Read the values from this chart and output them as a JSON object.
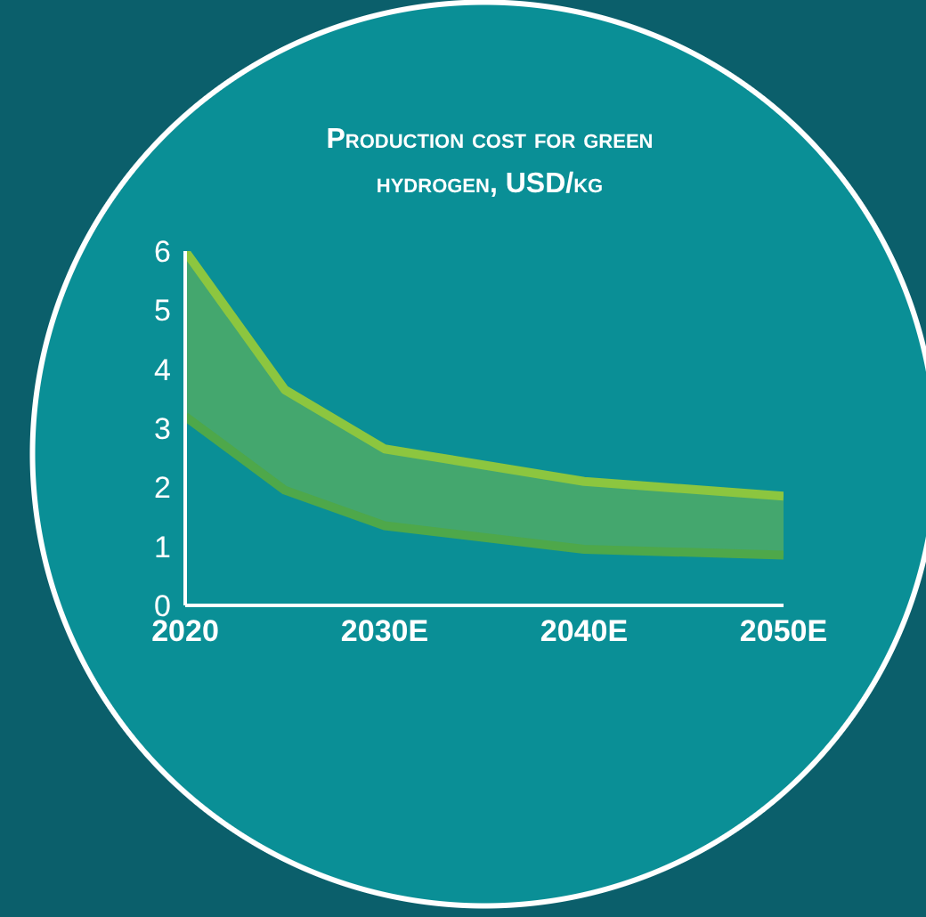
{
  "chart_data": {
    "type": "line",
    "title": "Production cost for green hydrogen, USD/kg",
    "x": [
      2020,
      2025,
      2030,
      2040,
      2050
    ],
    "series": [
      {
        "color": "#8cc63f",
        "values": [
          6.0,
          3.65,
          2.65,
          2.1,
          1.85
        ],
        "lower": [
          3.2,
          1.95,
          1.35,
          0.95,
          0.85
        ],
        "upper": [
          6.0,
          3.65,
          2.65,
          2.1,
          1.85
        ]
      },
      {
        "color": "#4ea84a",
        "values": [
          3.2,
          1.95,
          1.35,
          0.95,
          0.85
        ]
      }
    ],
    "xlim": [
      2020,
      2050
    ],
    "xticks": [
      2020,
      {
        "value": 2030,
        "label": "2030E"
      },
      {
        "value": 2040,
        "label": "2040E"
      },
      {
        "value": 2050,
        "label": "2050E"
      }
    ],
    "ylim": [
      0,
      6
    ],
    "yticks": [
      0,
      1,
      2,
      3,
      4,
      5,
      6
    ],
    "grid": false,
    "legend": false,
    "marker": "none",
    "line_style": "solid"
  }
}
